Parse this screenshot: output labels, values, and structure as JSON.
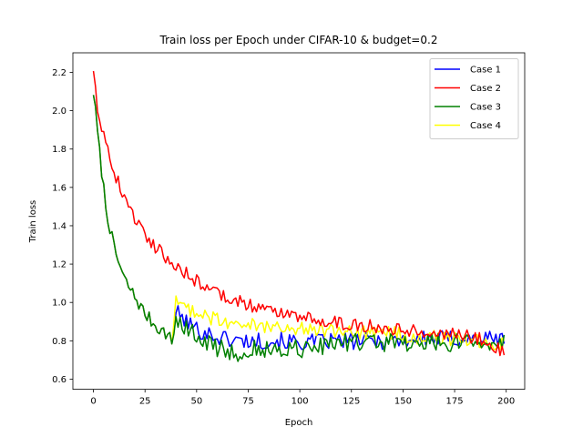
{
  "chart_data": {
    "type": "line",
    "title": "Train loss per Epoch under CIFAR-10 & budget=0.2",
    "xlabel": "Epoch",
    "ylabel": "Train loss",
    "xlim": [
      -9.95,
      208.95
    ],
    "ylim": [
      0.547,
      2.302
    ],
    "x_ticks": [
      0,
      25,
      50,
      75,
      100,
      125,
      150,
      175,
      200
    ],
    "y_ticks": [
      0.6,
      0.8,
      1.0,
      1.2,
      1.4,
      1.6,
      1.8,
      2.0,
      2.2
    ],
    "x_tick_labels": [
      "0",
      "25",
      "50",
      "75",
      "100",
      "125",
      "150",
      "175",
      "200"
    ],
    "y_tick_labels": [
      "0.6",
      "0.8",
      "1.0",
      "1.2",
      "1.4",
      "1.6",
      "1.8",
      "2.0",
      "2.2"
    ],
    "grid": false,
    "legend_position": "top-right",
    "epochs": {
      "start": 0,
      "end": 199
    },
    "series": [
      {
        "name": "Case 1",
        "color": "#0000ff",
        "anchors": [
          [
            0,
            2.1
          ],
          [
            3,
            1.78
          ],
          [
            6,
            1.5
          ],
          [
            10,
            1.28
          ],
          [
            15,
            1.12
          ],
          [
            20,
            1.03
          ],
          [
            25,
            0.94
          ],
          [
            30,
            0.88
          ],
          [
            35,
            0.84
          ],
          [
            38,
            0.8
          ],
          [
            40,
            0.95
          ],
          [
            45,
            0.9
          ],
          [
            50,
            0.86
          ],
          [
            60,
            0.82
          ],
          [
            70,
            0.8
          ],
          [
            80,
            0.8
          ],
          [
            90,
            0.8
          ],
          [
            100,
            0.79
          ],
          [
            120,
            0.8
          ],
          [
            140,
            0.8
          ],
          [
            160,
            0.81
          ],
          [
            180,
            0.81
          ],
          [
            199,
            0.81
          ]
        ],
        "noise": 0.045
      },
      {
        "name": "Case 2",
        "color": "#ff0000",
        "anchors": [
          [
            0,
            2.22
          ],
          [
            2,
            2.02
          ],
          [
            5,
            1.88
          ],
          [
            10,
            1.68
          ],
          [
            15,
            1.55
          ],
          [
            20,
            1.44
          ],
          [
            25,
            1.36
          ],
          [
            30,
            1.29
          ],
          [
            35,
            1.24
          ],
          [
            40,
            1.19
          ],
          [
            45,
            1.15
          ],
          [
            50,
            1.11
          ],
          [
            55,
            1.08
          ],
          [
            60,
            1.05
          ],
          [
            65,
            1.03
          ],
          [
            70,
            1.01
          ],
          [
            75,
            0.99
          ],
          [
            80,
            0.97
          ],
          [
            90,
            0.95
          ],
          [
            100,
            0.93
          ],
          [
            110,
            0.91
          ],
          [
            120,
            0.89
          ],
          [
            130,
            0.88
          ],
          [
            140,
            0.87
          ],
          [
            150,
            0.86
          ],
          [
            160,
            0.85
          ],
          [
            170,
            0.84
          ],
          [
            180,
            0.83
          ],
          [
            190,
            0.8
          ],
          [
            199,
            0.74
          ]
        ],
        "noise": 0.035
      },
      {
        "name": "Case 3",
        "color": "#008000",
        "anchors": [
          [
            0,
            2.1
          ],
          [
            3,
            1.78
          ],
          [
            6,
            1.5
          ],
          [
            10,
            1.28
          ],
          [
            15,
            1.12
          ],
          [
            20,
            1.03
          ],
          [
            25,
            0.94
          ],
          [
            30,
            0.88
          ],
          [
            35,
            0.84
          ],
          [
            38,
            0.8
          ],
          [
            40,
            0.9
          ],
          [
            50,
            0.82
          ],
          [
            60,
            0.76
          ],
          [
            70,
            0.74
          ],
          [
            80,
            0.76
          ],
          [
            90,
            0.75
          ],
          [
            100,
            0.76
          ],
          [
            110,
            0.77
          ],
          [
            120,
            0.78
          ],
          [
            130,
            0.79
          ],
          [
            140,
            0.79
          ],
          [
            150,
            0.79
          ],
          [
            160,
            0.79
          ],
          [
            170,
            0.79
          ],
          [
            180,
            0.79
          ],
          [
            199,
            0.79
          ]
        ],
        "noise": 0.05
      },
      {
        "name": "Case 4",
        "color": "#ffff00",
        "anchors": [
          [
            0,
            2.1
          ],
          [
            3,
            1.78
          ],
          [
            6,
            1.5
          ],
          [
            10,
            1.28
          ],
          [
            15,
            1.12
          ],
          [
            20,
            1.03
          ],
          [
            25,
            0.94
          ],
          [
            30,
            0.88
          ],
          [
            35,
            0.84
          ],
          [
            38,
            0.8
          ],
          [
            40,
            1.0
          ],
          [
            50,
            0.95
          ],
          [
            60,
            0.91
          ],
          [
            70,
            0.88
          ],
          [
            80,
            0.88
          ],
          [
            90,
            0.87
          ],
          [
            100,
            0.86
          ],
          [
            120,
            0.85
          ],
          [
            140,
            0.84
          ],
          [
            160,
            0.82
          ],
          [
            180,
            0.8
          ],
          [
            199,
            0.78
          ]
        ],
        "noise": 0.04
      }
    ]
  }
}
